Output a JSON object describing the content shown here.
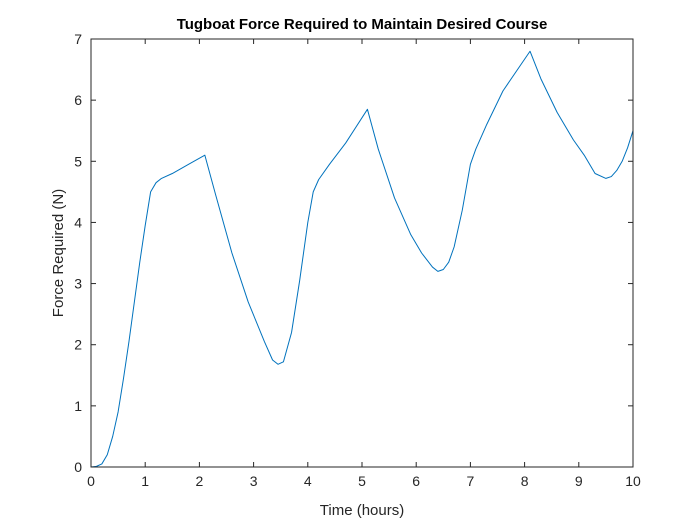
{
  "chart_data": {
    "type": "line",
    "title": "Tugboat Force Required to Maintain Desired Course",
    "xlabel": "Time (hours)",
    "ylabel": "Force Required (N)",
    "xlim": [
      0,
      10
    ],
    "ylim": [
      0,
      7
    ],
    "xticks": [
      "0",
      "1",
      "2",
      "3",
      "4",
      "5",
      "6",
      "7",
      "8",
      "9",
      "10"
    ],
    "yticks": [
      "0",
      "1",
      "2",
      "3",
      "4",
      "5",
      "6",
      "7"
    ],
    "grid": false,
    "line_color": "#0072BD",
    "series": [
      {
        "name": "",
        "x": [
          0,
          0.1,
          0.2,
          0.3,
          0.4,
          0.5,
          0.6,
          0.7,
          0.8,
          0.9,
          1.0,
          1.1,
          1.2,
          1.3,
          1.5,
          1.8,
          2.1,
          2.3,
          2.6,
          2.9,
          3.2,
          3.35,
          3.45,
          3.55,
          3.7,
          3.85,
          4.0,
          4.1,
          4.2,
          4.4,
          4.7,
          5.1,
          5.3,
          5.6,
          5.9,
          6.1,
          6.3,
          6.4,
          6.5,
          6.6,
          6.7,
          6.85,
          7.0,
          7.1,
          7.3,
          7.6,
          8.1,
          8.3,
          8.6,
          8.9,
          9.1,
          9.3,
          9.5,
          9.6,
          9.7,
          9.8,
          9.9,
          10.0
        ],
        "y": [
          0,
          0.01,
          0.05,
          0.2,
          0.5,
          0.9,
          1.45,
          2.05,
          2.7,
          3.35,
          3.95,
          4.5,
          4.65,
          4.72,
          4.8,
          4.95,
          5.1,
          4.45,
          3.5,
          2.7,
          2.05,
          1.75,
          1.68,
          1.72,
          2.2,
          3.05,
          4.0,
          4.5,
          4.7,
          4.95,
          5.3,
          5.85,
          5.2,
          4.4,
          3.8,
          3.5,
          3.27,
          3.2,
          3.23,
          3.35,
          3.6,
          4.2,
          4.95,
          5.2,
          5.6,
          6.15,
          6.8,
          6.35,
          5.8,
          5.35,
          5.1,
          4.8,
          4.72,
          4.75,
          4.85,
          5.0,
          5.22,
          5.5
        ]
      }
    ]
  }
}
